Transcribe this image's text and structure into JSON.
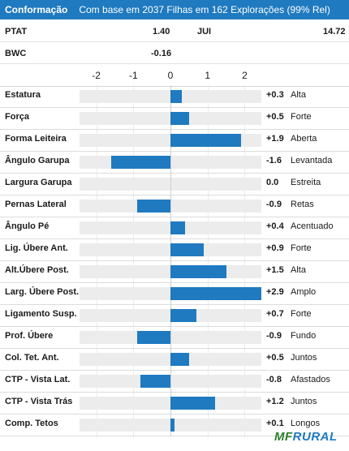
{
  "header": {
    "title": "Conformação",
    "subtitle": "Com base em 2037 Filhas em 162 Explorações (99% Rel)"
  },
  "ptat": {
    "label": "PTAT",
    "value": "1.40",
    "jui_label": "JUI",
    "jui_value": "14.72"
  },
  "bwc": {
    "label": "BWC",
    "value": "-0.16"
  },
  "chart_data": {
    "type": "bar",
    "orientation": "horizontal",
    "xlim": [
      -2.45,
      2.45
    ],
    "ticks": [
      "-2",
      "-1",
      "0",
      "1",
      "2"
    ],
    "categories": [
      "Estatura",
      "Força",
      "Forma Leiteira",
      "Ângulo Garupa",
      "Largura Garupa",
      "Pernas Lateral",
      "Ângulo Pé",
      "Lig. Úbere Ant.",
      "Alt.Úbere Post.",
      "Larg. Úbere Post.",
      "Ligamento Susp.",
      "Prof. Úbere",
      "Col. Tet. Ant.",
      "CTP - Vista Lat.",
      "CTP - Vista Trás",
      "Comp. Tetos"
    ],
    "values": [
      0.3,
      0.5,
      1.9,
      -1.6,
      0.0,
      -0.9,
      0.4,
      0.9,
      1.5,
      2.9,
      0.7,
      -0.9,
      0.5,
      -0.8,
      1.2,
      0.1
    ],
    "value_labels": [
      "+0.3",
      "+0.5",
      "+1.9",
      "-1.6",
      "0.0",
      "-0.9",
      "+0.4",
      "+0.9",
      "+1.5",
      "+2.9",
      "+0.7",
      "-0.9",
      "+0.5",
      "-0.8",
      "+1.2",
      "+0.1"
    ],
    "descriptors": [
      "Alta",
      "Forte",
      "Aberta",
      "Levantada",
      "Estreita",
      "Retas",
      "Acentuado",
      "Forte",
      "Alta",
      "Amplo",
      "Forte",
      "Fundo",
      "Juntos",
      "Afastados",
      "Juntos",
      "Longos"
    ]
  },
  "logo": {
    "part1": "MF",
    "part2": "RURAL"
  },
  "colors": {
    "accent": "#1f7ac0",
    "logo_green": "#2d7f2d"
  }
}
